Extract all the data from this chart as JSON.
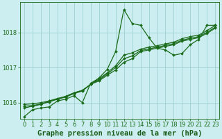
{
  "title": "Graphe pression niveau de la mer (hPa)",
  "background_color": "#cceef0",
  "line_color": "#1a6b1a",
  "grid_color": "#9ecfcf",
  "xlabel_color": "#1a5c1a",
  "hours": [
    0,
    1,
    2,
    3,
    4,
    5,
    6,
    7,
    8,
    9,
    10,
    11,
    12,
    13,
    14,
    15,
    16,
    17,
    18,
    19,
    20,
    21,
    22,
    23
  ],
  "series": [
    [
      1015.6,
      1015.8,
      1015.85,
      1015.88,
      1016.05,
      1016.1,
      1016.2,
      1016.0,
      1016.55,
      1016.7,
      1016.95,
      1017.45,
      1018.65,
      1018.25,
      1018.2,
      1017.85,
      1017.55,
      1017.5,
      1017.35,
      1017.4,
      1017.65,
      1017.8,
      1018.2,
      1018.2
    ],
    [
      1015.85,
      1015.9,
      1015.95,
      1016.05,
      1016.1,
      1016.18,
      1016.28,
      1016.35,
      1016.52,
      1016.68,
      1016.85,
      1017.05,
      1017.35,
      1017.42,
      1017.52,
      1017.58,
      1017.62,
      1017.67,
      1017.72,
      1017.82,
      1017.88,
      1017.92,
      1018.05,
      1018.2
    ],
    [
      1015.9,
      1015.92,
      1015.96,
      1016.02,
      1016.1,
      1016.16,
      1016.26,
      1016.33,
      1016.52,
      1016.65,
      1016.82,
      1017.0,
      1017.25,
      1017.33,
      1017.48,
      1017.53,
      1017.58,
      1017.63,
      1017.68,
      1017.78,
      1017.83,
      1017.88,
      1018.0,
      1018.15
    ],
    [
      1015.95,
      1015.97,
      1016.0,
      1016.05,
      1016.12,
      1016.18,
      1016.28,
      1016.35,
      1016.52,
      1016.62,
      1016.78,
      1016.93,
      1017.15,
      1017.25,
      1017.45,
      1017.5,
      1017.55,
      1017.6,
      1017.65,
      1017.75,
      1017.8,
      1017.85,
      1017.97,
      1018.12
    ]
  ],
  "ylim": [
    1015.55,
    1018.85
  ],
  "yticks": [
    1016,
    1017,
    1018
  ],
  "xlim": [
    -0.5,
    23.5
  ],
  "marker": "D",
  "marker_size": 2.0,
  "line_width": 0.9,
  "title_fontsize": 7.5,
  "tick_fontsize": 6.0
}
